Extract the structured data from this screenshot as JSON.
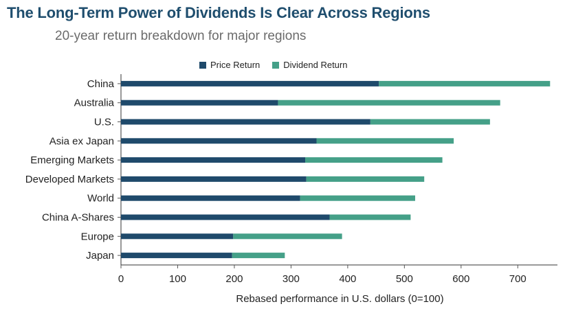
{
  "header": {
    "title": "The Long-Term Power of Dividends Is Clear Across Regions",
    "subtitle": "20-year return breakdown for major regions"
  },
  "colors": {
    "price": "#1f4a6b",
    "dividend": "#45a088",
    "axis": "#333333",
    "tick": "#555555"
  },
  "chart_data": {
    "type": "bar",
    "orientation": "horizontal",
    "stacked": true,
    "title": "The Long-Term Power of Dividends Is Clear Across Regions",
    "subtitle": "20-year return breakdown for major regions",
    "xlabel": "Rebased performance in U.S. dollars (0=100)",
    "ylabel": "",
    "xlim": [
      0,
      770
    ],
    "xticks": [
      0,
      100,
      200,
      300,
      400,
      500,
      600,
      700
    ],
    "legend_position": "top",
    "categories": [
      "China",
      "Australia",
      "U.S.",
      "Asia ex Japan",
      "Emerging Markets",
      "Developed Markets",
      "World",
      "China A-Shares",
      "Europe",
      "Japan"
    ],
    "series": [
      {
        "name": "Price Return",
        "values": [
          455,
          277,
          440,
          345,
          325,
          327,
          316,
          368,
          198,
          196
        ]
      },
      {
        "name": "Dividend Return",
        "values": [
          302,
          392,
          211,
          242,
          242,
          208,
          203,
          143,
          192,
          93
        ]
      }
    ]
  }
}
